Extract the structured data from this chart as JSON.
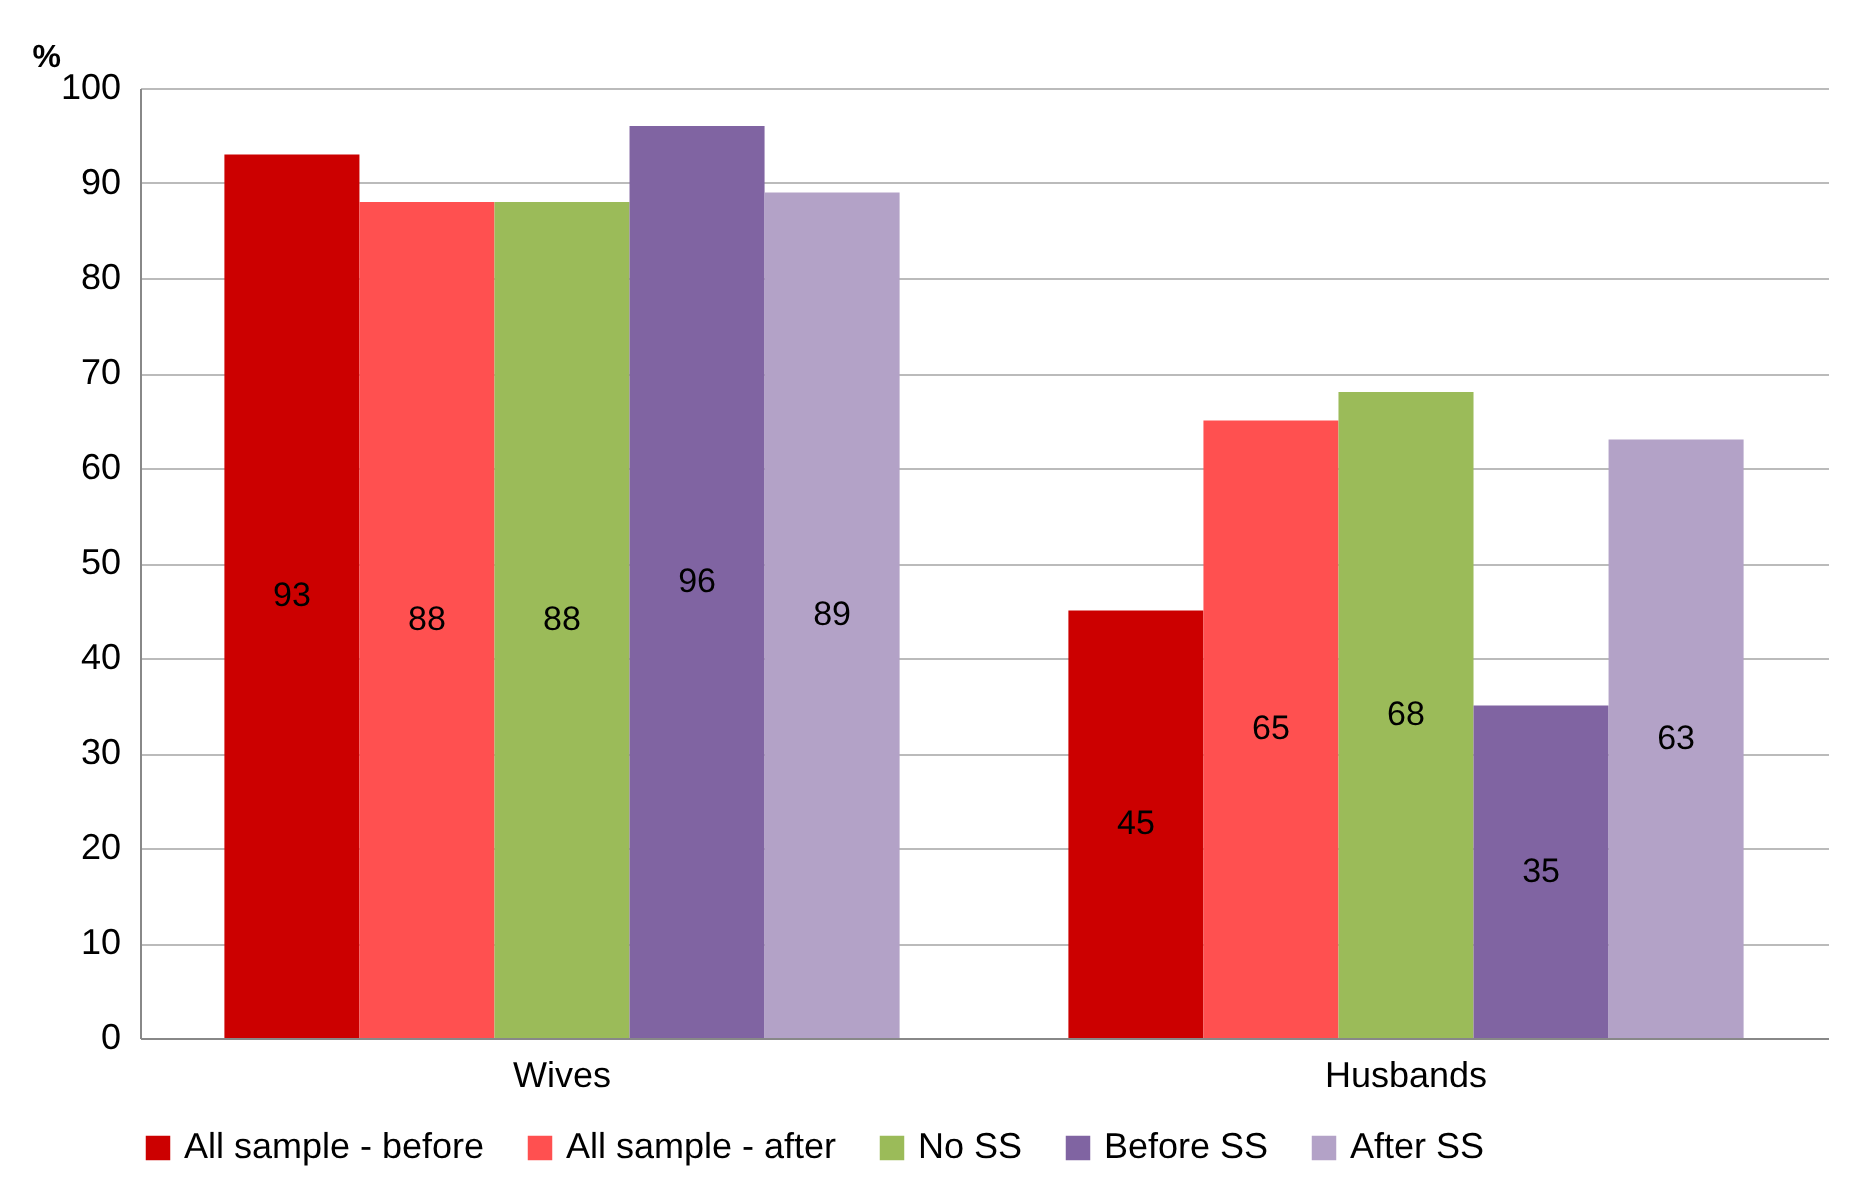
{
  "chart_data": {
    "type": "bar",
    "ylabel": "%",
    "categories": [
      "Wives",
      "Husbands"
    ],
    "series": [
      {
        "name": "All sample - before",
        "color": "#cc0000",
        "values": [
          93,
          45
        ]
      },
      {
        "name": "All sample - after",
        "color": "#ff5050",
        "values": [
          88,
          65
        ]
      },
      {
        "name": "No SS",
        "color": "#9bbb59",
        "values": [
          88,
          68
        ]
      },
      {
        "name": "Before SS",
        "color": "#8064a2",
        "values": [
          96,
          35
        ]
      },
      {
        "name": "After SS",
        "color": "#b3a2c7",
        "values": [
          89,
          63
        ]
      }
    ],
    "ylim": [
      0,
      100
    ],
    "yticks": [
      0,
      10,
      20,
      30,
      40,
      50,
      60,
      70,
      80,
      90,
      100
    ],
    "grid": "y",
    "legend": "bottom",
    "data_labels": true
  }
}
